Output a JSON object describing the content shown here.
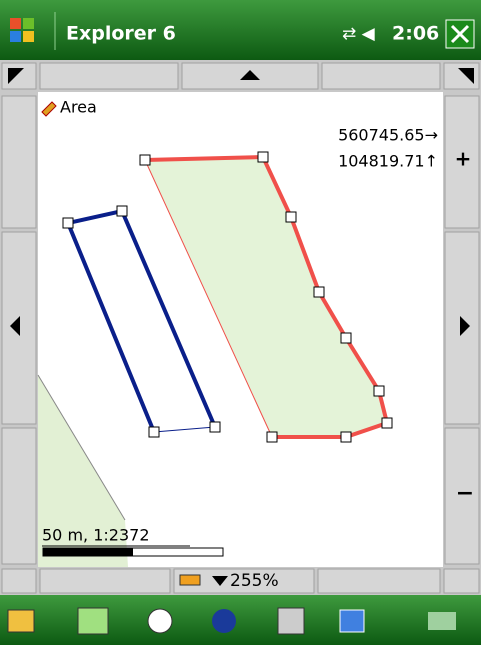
{
  "title_bar": {
    "app_name": "Explorer 6",
    "time": "2:06"
  },
  "map": {
    "tool_label": "Area",
    "coord_x": "560745.65→",
    "coord_y": "104819.71↑",
    "scale_label": "50 m, 1:2372"
  },
  "side_buttons": {
    "zoom_in": "+",
    "zoom_out": "−"
  },
  "bottom_toolbar": {
    "zoom_level": "255%"
  }
}
